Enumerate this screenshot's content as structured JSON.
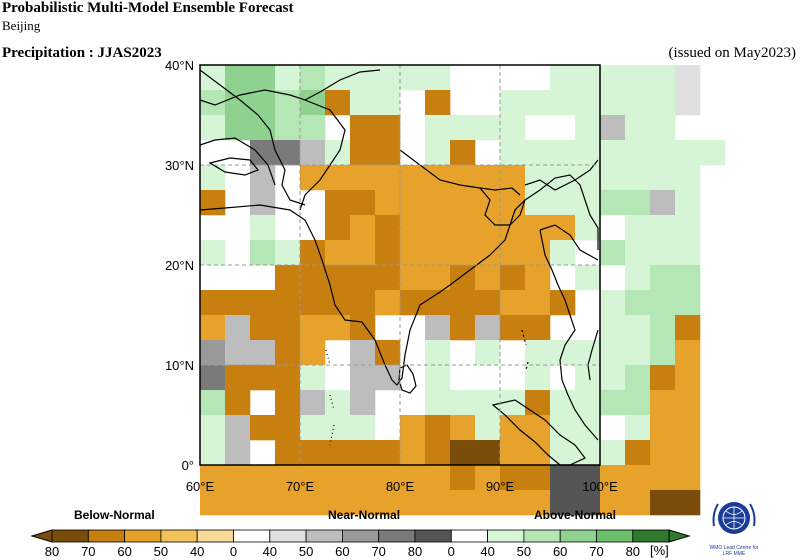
{
  "header": {
    "title": "Probabilistic Multi-Model Ensemble Forecast",
    "subtitle": "Beijing",
    "variable_season": "Precipitation : JJAS2023",
    "issued": "(issued on May2023)"
  },
  "map": {
    "lat_labels": [
      "40°N",
      "30°N",
      "20°N",
      "10°N",
      "0°"
    ],
    "lon_labels": [
      "60°E",
      "70°E",
      "80°E",
      "90°E",
      "100°E"
    ],
    "lat_range": [
      0,
      40
    ],
    "lon_range": [
      60,
      100
    ],
    "grid_spacing_deg": 10
  },
  "legend": {
    "categories": [
      "Below-Normal",
      "Near-Normal",
      "Above-Normal"
    ],
    "tick_labels": [
      "80",
      "70",
      "60",
      "50",
      "40",
      "0",
      "40",
      "50",
      "60",
      "70",
      "80",
      "0",
      "40",
      "50",
      "60",
      "70",
      "80"
    ],
    "unit": "[%]",
    "below_colors": [
      "#7a4e0a",
      "#c77f0f",
      "#e6a22a",
      "#f2c35a",
      "#f8d999"
    ],
    "near_colors": [
      "#e0e0e0",
      "#bdbdbd",
      "#999999",
      "#7a7a7a",
      "#555555"
    ],
    "above_colors": [
      "#d6f5d6",
      "#b5e6b5",
      "#8fd28f",
      "#6bbf6b",
      "#2f7a2f"
    ],
    "white": "#ffffff"
  },
  "logo": {
    "text_line1": "WMO Lead Centre for",
    "text_line2": "LRF MME"
  },
  "chart_data": {
    "type": "heatmap",
    "description_units": "probability (%) of dominant tercile category per 2.5° grid cell",
    "category_codes": "B=below-normal, N=near-normal, A=above-normal; digit = color level 1..5 (40,50,60,70,80)",
    "grid_origin": {
      "lon": 60,
      "lat": 40
    },
    "cell_deg": 2.5,
    "rows": [
      "A1A3A3A1A2A1A1A1A1A1........A1A1A1A1A1N1..",
      "A2A3A3A2A3B4A1A1..B4....A1A1A1A1A1A1A1N1..",
      "A1A3A3A2A2..B4B4..A1A1A1A1....A1N2A1A1..",
      "....N4N4N2A1B4B4..A1B4..A1A1A1A1A1A1A1A1A1",
      "A1..N2..B3B3B3B3B3B3B3B3B3A1A1A1A1A1A1A1",
      "B4..N2....B4B4B3B3B3B3B3B3A1A1A1A2A2N2A1",
      "....A1....B4B3B4B3B3B3B3B3B3B3A1..A1A1A1",
      "A1..A2A1B4B3B3B4B3B3B3B3B3B3A1..A2A1A1A1",
      "......B4B4B4B4B4B3B3B4B3B4B3..A1..A1A2A2",
      "B4B4B4B4B4B4B4B3B4B4B4B4B3B3B4..A1A2A2A2",
      "B3N2B4B4B3B3B4....N2B4N2B4B4....A1A1A2B4",
      "N3N2N2B4B3..N2B4..A1..A1..A1A1A1A1A1A2B3",
      "N4B4B4B4A1..N2N2..A1......A1..A1A1A2B4B3",
      "A2B4..B4N2A1N2....A1A1A1A1B4A1A1A2A2B3B3",
      "A1N2B4B4A1A1A1..B3B4B3A1B3B3A1A1..A1B3B3",
      "A1N2..B4B4B4B4B4B3B4B5B5B3B3A1A1A1B4B3B3",
      "B3B3B3B3B3B3B3B3B3B3B4B3B4B4N5N5B3B3B3B3",
      "B3B3B3B3B3B3B3B3B3B3B3B3B3B3N5N5B3B3B5B5"
    ],
    "lat_ticks": [
      40,
      30,
      20,
      10,
      0
    ],
    "lon_ticks": [
      60,
      70,
      80,
      90,
      100
    ]
  }
}
